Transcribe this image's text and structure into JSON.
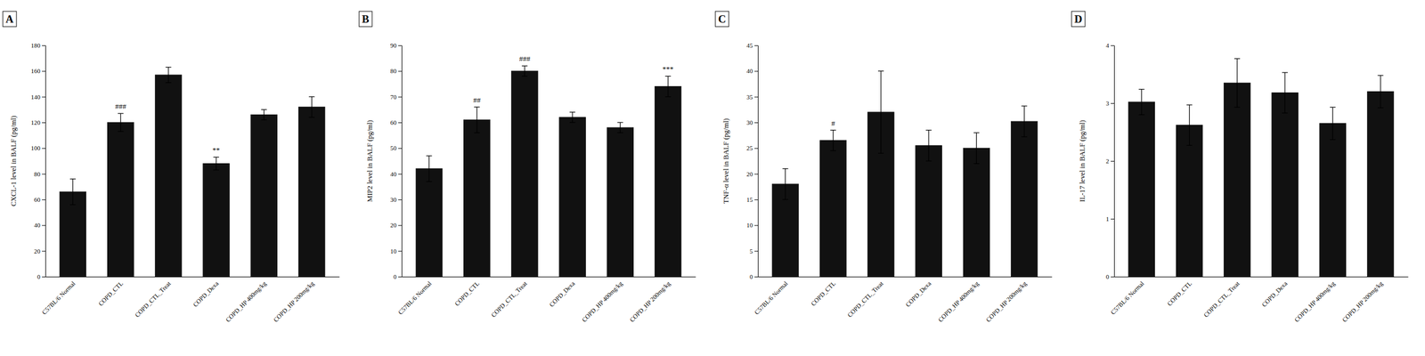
{
  "chart_data": [
    {
      "type": "bar",
      "title": "A",
      "ylabel": "CXCL-1 level in BALF (pg/ml)",
      "ylim": [
        0,
        180
      ],
      "yticks": [
        0,
        20,
        40,
        60,
        80,
        100,
        120,
        140,
        160,
        180
      ],
      "categories": [
        "C57BL/6 Normal",
        "COPD_CTL",
        "COPD_CTL_Treat",
        "COPD_Dexa",
        "COPD_HP 400mg/kg",
        "COPD_HP 200mg/kg"
      ],
      "values": [
        66,
        120,
        157,
        88,
        126,
        132
      ],
      "errors": [
        10,
        7,
        6,
        5,
        4,
        8
      ],
      "annotations": [
        {
          "text": "###",
          "category": "COPD_CTL"
        },
        {
          "text": "**",
          "category": "COPD_Dexa"
        }
      ],
      "color": "#111111",
      "grid": false
    },
    {
      "type": "bar",
      "title": "B",
      "ylabel": "MIP2 level in BALF (pg/ml)",
      "ylim": [
        0,
        90
      ],
      "yticks": [
        0,
        10,
        20,
        30,
        40,
        50,
        60,
        70,
        80,
        90
      ],
      "categories": [
        "C57BL/6 Normal",
        "COPD_CTL",
        "COPD_CTL_Treat",
        "COPD_Dexa",
        "COPD_HP 400mg/kg",
        "COPD_HP 200mg/kg"
      ],
      "values": [
        42,
        61,
        80,
        62,
        58,
        74
      ],
      "errors": [
        5,
        5,
        2,
        2,
        2,
        4
      ],
      "annotations": [
        {
          "text": "##",
          "category": "COPD_CTL"
        },
        {
          "text": "###",
          "category": "COPD_CTL_Treat"
        },
        {
          "text": "***",
          "category": "COPD_HP 200mg/kg"
        }
      ],
      "color": "#111111",
      "grid": false
    },
    {
      "type": "bar",
      "title": "C",
      "ylabel": "TNF-α level in BALF (pg/ml)",
      "ylim": [
        0,
        45
      ],
      "yticks": [
        0,
        5,
        10,
        15,
        20,
        25,
        30,
        35,
        40,
        45
      ],
      "categories": [
        "C57BL/6 Normal",
        "COPD_CTL",
        "COPD_CTL_Treat",
        "COPD_Dexa",
        "COPD_HP 400mg/kg",
        "COPD_HP 200mg/kg"
      ],
      "values": [
        18,
        26.5,
        32,
        25.5,
        25,
        30.2
      ],
      "errors": [
        3,
        2,
        8,
        3,
        3,
        3
      ],
      "annotations": [
        {
          "text": "#",
          "category": "COPD_CTL"
        }
      ],
      "color": "#111111",
      "grid": false
    },
    {
      "type": "bar",
      "title": "D",
      "ylabel": "IL-17 level in BALF (pg/ml)",
      "ylim": [
        0,
        4
      ],
      "yticks": [
        0,
        1,
        2,
        3,
        4
      ],
      "categories": [
        "C57BL/6 Normal",
        "COPD_CTL",
        "COPD_CTL_Treat",
        "COPD_Dexa",
        "COPD_HP 400mg/kg",
        "COPD_HP 200mg/kg"
      ],
      "values": [
        3.02,
        2.62,
        3.35,
        3.18,
        2.65,
        3.2
      ],
      "errors": [
        0.22,
        0.35,
        0.42,
        0.35,
        0.28,
        0.28
      ],
      "annotations": [],
      "color": "#111111",
      "grid": false
    }
  ]
}
